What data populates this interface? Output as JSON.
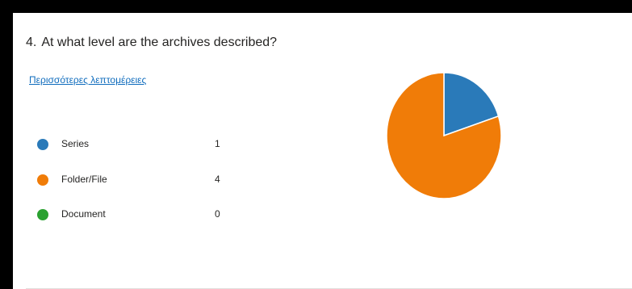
{
  "question": {
    "number": "4.",
    "text": "At what level are the archives described?"
  },
  "more_details_link": "Περισσότερες λεπτομέρειες",
  "chart_data": {
    "type": "pie",
    "title": "",
    "categories": [
      "Series",
      "Folder/File",
      "Document"
    ],
    "values": [
      1,
      4,
      0
    ],
    "colors": [
      "#2a7ab9",
      "#f07c08",
      "#2aa130"
    ],
    "legend_position": "left"
  }
}
